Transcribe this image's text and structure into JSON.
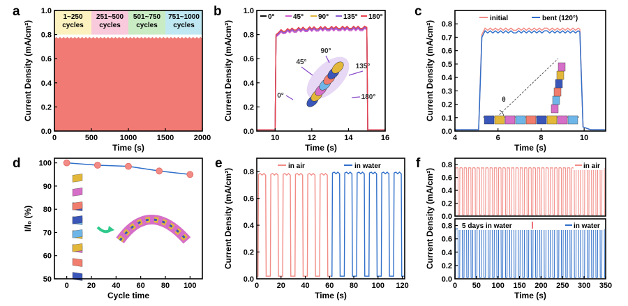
{
  "chart_data": [
    {
      "type": "area",
      "panel_label": "a",
      "xlabel": "Time (s)",
      "ylabel": "Current Density (mA/cm²)",
      "xlim": [
        0,
        2000
      ],
      "ylim": [
        0,
        1.0
      ],
      "xticks": [
        0,
        500,
        1000,
        1500,
        2000
      ],
      "yticks": [
        0.0,
        0.2,
        0.4,
        0.6,
        0.8,
        1.0
      ],
      "series": [
        {
          "values_range": [
            0,
            0.77
          ],
          "plateau": 0.77,
          "color": "#f27a74"
        }
      ],
      "segments": [
        {
          "label": "1~250\ncycles",
          "color": "#fbf2c0",
          "x": [
            0,
            500
          ]
        },
        {
          "label": "251~500\ncycles",
          "color": "#f9c9dc",
          "x": [
            500,
            1000
          ]
        },
        {
          "label": "501~750\ncycles",
          "color": "#c9ecc4",
          "x": [
            1000,
            1500
          ]
        },
        {
          "label": "751~1000\ncycles",
          "color": "#bfe8f2",
          "x": [
            1500,
            2000
          ]
        }
      ]
    },
    {
      "type": "line",
      "panel_label": "b",
      "xlabel": "Time (s)",
      "ylabel": "Current Density (mA/cm²)",
      "xlim": [
        9,
        16
      ],
      "ylim": [
        0,
        1.0
      ],
      "xticks": [
        10,
        12,
        14,
        16
      ],
      "yticks": [
        0.0,
        0.2,
        0.4,
        0.6,
        0.8,
        1.0
      ],
      "on_off": [
        10,
        15
      ],
      "series": [
        {
          "name": "0°",
          "color": "#111111",
          "plateau": 0.85
        },
        {
          "name": "45°",
          "color": "#d45fd0",
          "plateau": 0.84
        },
        {
          "name": "90°",
          "color": "#e0b23a",
          "plateau": 0.855
        },
        {
          "name": "135°",
          "color": "#8a5bd0",
          "plateau": 0.85
        },
        {
          "name": "180°",
          "color": "#e8424c",
          "plateau": 0.86
        }
      ],
      "inset_labels": [
        "0°",
        "45°",
        "90°",
        "135°",
        "180°"
      ]
    },
    {
      "type": "line",
      "panel_label": "c",
      "xlabel": "Time (s)",
      "ylabel": "Current Density (mA/cm²)",
      "xlim": [
        4,
        11
      ],
      "ylim": [
        0,
        0.9
      ],
      "xticks": [
        4,
        6,
        8,
        10
      ],
      "yticks": [
        0.0,
        0.1,
        0.2,
        0.3,
        0.4,
        0.5,
        0.6,
        0.7,
        0.8
      ],
      "on_off": [
        5.1,
        9.8
      ],
      "series": [
        {
          "name": "initial",
          "color": "#f28b85",
          "plateau": 0.76
        },
        {
          "name": "bent (120°)",
          "color": "#2f6fc9",
          "plateau": 0.74
        }
      ],
      "inset_labels": [
        "θ"
      ]
    },
    {
      "type": "line",
      "panel_label": "d",
      "xlabel": "Cycle time",
      "ylabel": "I/I₀ (%)",
      "xlim": [
        -10,
        110
      ],
      "ylim": [
        50,
        102
      ],
      "xticks": [
        0,
        20,
        40,
        60,
        80,
        100
      ],
      "yticks": [
        50,
        60,
        70,
        80,
        90,
        100
      ],
      "x": [
        0,
        25,
        50,
        75,
        100
      ],
      "series": [
        {
          "values": [
            100,
            99,
            98.5,
            96.5,
            95
          ],
          "color": "#2f6fc9",
          "marker_color": "#f28b85"
        }
      ]
    },
    {
      "type": "line",
      "panel_label": "e",
      "xlabel": "Time (s)",
      "ylabel": "Current Density (mA/cm²)",
      "xlim": [
        0,
        122
      ],
      "ylim": [
        0,
        0.9
      ],
      "xticks": [
        0,
        20,
        40,
        60,
        80,
        100,
        120
      ],
      "yticks": [
        0.0,
        0.2,
        0.4,
        0.6,
        0.8
      ],
      "series": [
        {
          "name": "in air",
          "color": "#f28b85",
          "plateau": 0.78,
          "x_range": [
            0,
            61
          ],
          "cycles": 6
        },
        {
          "name": "in water",
          "color": "#2f6fc9",
          "plateau": 0.79,
          "x_range": [
            61,
            122
          ],
          "cycles": 6
        }
      ]
    },
    {
      "type": "line",
      "panel_label": "f",
      "xlabel": "Time (s)",
      "ylabel": "Current Density (mA/cm²)",
      "xlim": [
        0,
        350
      ],
      "xticks": [
        0,
        50,
        100,
        150,
        200,
        250,
        300,
        350
      ],
      "yticks_top": [
        0.0,
        0.2,
        0.4,
        0.6,
        0.8
      ],
      "yticks_bottom": [
        0.0,
        0.2,
        0.4,
        0.6,
        0.8
      ],
      "series": [
        {
          "name": "in air",
          "color": "#f28b85",
          "plateau": 0.75,
          "subplot": "top",
          "cycles": 35
        },
        {
          "name": "in water",
          "color": "#2f6fc9",
          "plateau": 0.75,
          "subplot": "bottom",
          "cycles": 35
        }
      ],
      "annotation": "5 days in water"
    }
  ]
}
